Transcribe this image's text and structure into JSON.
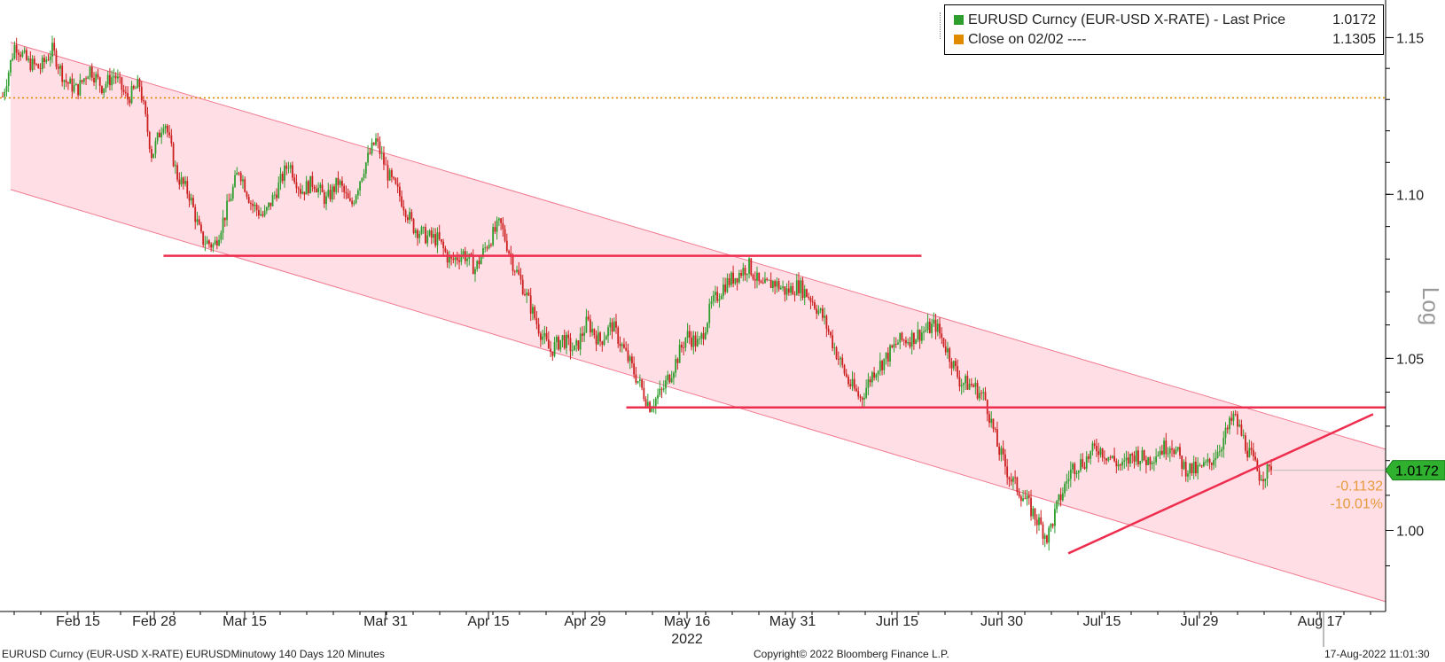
{
  "legend": {
    "series1_label": "EURUSD Curncy (EUR-USD X-RATE) - Last Price",
    "series1_value": "1.0172",
    "series2_label": "Close on 02/02 ----",
    "series2_value": "1.1305"
  },
  "colors": {
    "up_candle": "#2e9e2e",
    "down_candle": "#cc1f1f",
    "channel_fill": "#ffdfe5",
    "channel_edge": "#f07a90",
    "support_line": "#ee2e4f",
    "reference_line": "#e08a00",
    "last_price_tag": "#2fb12f",
    "change_text": "#e69a3c"
  },
  "axis": {
    "scale_label": "Log",
    "year_label": "2022"
  },
  "last_tag": "1.0172",
  "change_abs": "-0.1132",
  "change_pct": "-10.01%",
  "footer": {
    "left": "EURUSD Curncy (EUR-USD X-RATE) EURUSDMinutowy 140 Days 120 Minutes",
    "center": "Copyright© 2022 Bloomberg Finance L.P.",
    "right": "17-Aug-2022 11:01:30"
  },
  "chart_data": {
    "type": "candlestick",
    "scale": "log",
    "ylim": [
      0.978,
      1.16
    ],
    "y_ticks": [
      "1.15",
      "1.10",
      "1.05",
      "1.00"
    ],
    "x_ticks": [
      "Feb 15",
      "Feb 28",
      "Mar 15",
      "Mar 31",
      "Apr 15",
      "Apr 29",
      "May 16",
      "May 31",
      "Jun 15",
      "Jun 30",
      "Jul 15",
      "Jul 29",
      "Aug 17"
    ],
    "series": [
      {
        "name": "EURUSD Curncy (EUR-USD X-RATE) - Last Price",
        "last": 1.0172,
        "path": [
          1.131,
          1.148,
          1.142,
          1.14,
          1.146,
          1.136,
          1.133,
          1.14,
          1.134,
          1.138,
          1.13,
          1.135,
          1.112,
          1.124,
          1.106,
          1.1,
          1.086,
          1.084,
          1.095,
          1.108,
          1.097,
          1.093,
          1.101,
          1.11,
          1.101,
          1.104,
          1.098,
          1.104,
          1.096,
          1.108,
          1.117,
          1.106,
          1.099,
          1.09,
          1.087,
          1.086,
          1.079,
          1.082,
          1.077,
          1.085,
          1.091,
          1.079,
          1.07,
          1.06,
          1.052,
          1.056,
          1.052,
          1.061,
          1.055,
          1.06,
          1.052,
          1.044,
          1.036,
          1.04,
          1.048,
          1.057,
          1.054,
          1.066,
          1.072,
          1.075,
          1.078,
          1.071,
          1.073,
          1.07,
          1.072,
          1.068,
          1.062,
          1.052,
          1.043,
          1.038,
          1.046,
          1.05,
          1.055,
          1.056,
          1.058,
          1.06,
          1.052,
          1.043,
          1.042,
          1.038,
          1.024,
          1.015,
          1.01,
          1.004,
          0.998,
          1.009,
          1.018,
          1.02,
          1.024,
          1.021,
          1.018,
          1.022,
          1.02,
          1.023,
          1.025,
          1.018,
          1.017,
          1.019,
          1.025,
          1.033,
          1.024,
          1.016,
          1.017
        ]
      },
      {
        "name": "Close on 02/02",
        "value": 1.1305
      }
    ],
    "annotations": {
      "channel_upper": [
        [
          0,
          1.1495
        ],
        [
          1,
          1.0233
        ]
      ],
      "channel_lower": [
        [
          0,
          1.1025
        ],
        [
          1,
          0.98
        ]
      ],
      "resistance_1": {
        "value": 1.081,
        "from": 0.118,
        "to": 0.665
      },
      "resistance_2": {
        "value": 1.0355,
        "from": 0.452,
        "to": 1.0
      },
      "trend_support": [
        [
          0.771,
          0.9935
        ],
        [
          0.991,
          1.0335
        ]
      ]
    }
  }
}
